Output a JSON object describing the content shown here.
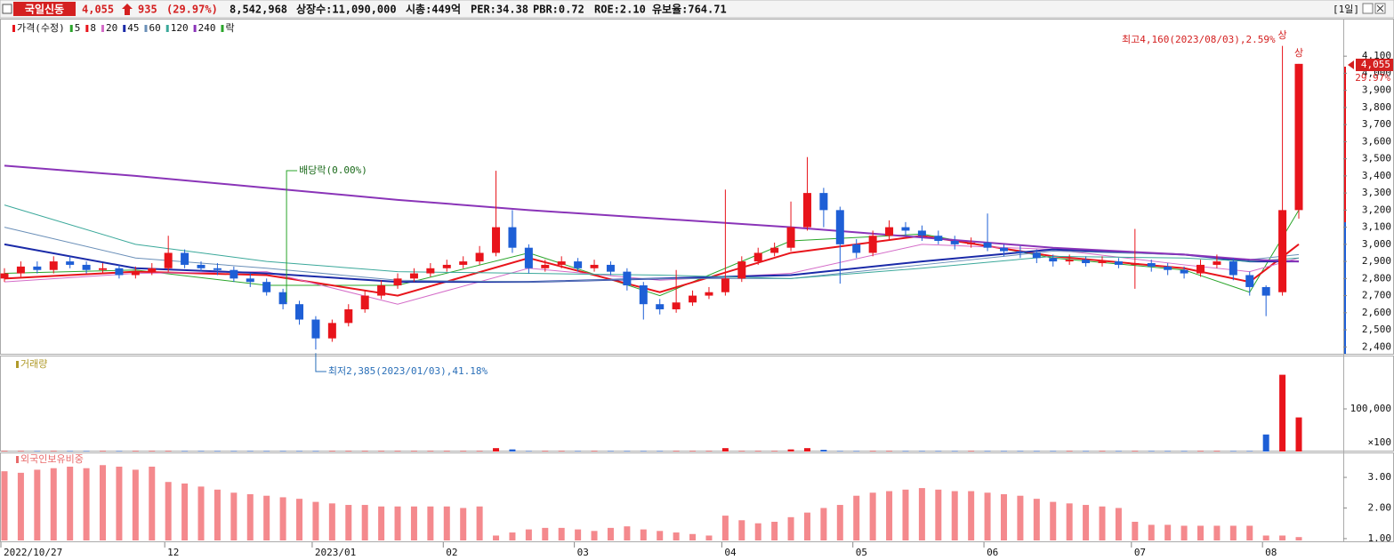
{
  "header": {
    "name": "국일신동",
    "price": "4,055",
    "change": "935",
    "change_rate": "(29.97%)",
    "volume": "8,542,968",
    "listed": "상장수:11,090,000",
    "market_cap": "시총:449억",
    "per": "PER:34.38",
    "pbr": "PBR:0.72",
    "roe": "ROE:2.10",
    "reserve": "유보율:764.71",
    "period": "[1일]"
  },
  "chart_data": [
    {
      "type": "candlestick",
      "price_name": "가격(수정)",
      "ex_div_name": "락",
      "up_color": "#e8141b",
      "down_color": "#1e5fd6",
      "open": [
        2800,
        2830,
        2870,
        2850,
        2900,
        2880,
        2850,
        2860,
        2820,
        2840,
        2860,
        2950,
        2880,
        2860,
        2850,
        2800,
        2780,
        2720,
        2650,
        2560,
        2450,
        2540,
        2620,
        2700,
        2760,
        2800,
        2830,
        2860,
        2880,
        2900,
        2950,
        3100,
        2980,
        2860,
        2880,
        2900,
        2860,
        2880,
        2840,
        2760,
        2650,
        2620,
        2660,
        2700,
        2720,
        2800,
        2900,
        2950,
        2980,
        3100,
        3300,
        3200,
        3000,
        2950,
        3050,
        3100,
        3080,
        3050,
        3020,
        3000,
        3010,
        2980,
        2960,
        2950,
        2920,
        2900,
        2910,
        2890,
        2900,
        2880,
        2890,
        2870,
        2850,
        2830,
        2880,
        2900,
        2820,
        2750,
        2720,
        3200
      ],
      "high": [
        2860,
        2900,
        2900,
        2930,
        2930,
        2900,
        2890,
        2880,
        2870,
        2890,
        3050,
        2970,
        2900,
        2890,
        2870,
        2830,
        2800,
        2740,
        2670,
        2580,
        2560,
        2650,
        2730,
        2790,
        2830,
        2860,
        2890,
        2910,
        2930,
        2990,
        3430,
        3200,
        3000,
        2910,
        2930,
        2920,
        2910,
        2900,
        2860,
        2780,
        2680,
        2850,
        2730,
        2750,
        3320,
        2930,
        2980,
        3010,
        3250,
        3510,
        3330,
        3220,
        3030,
        3080,
        3140,
        3130,
        3110,
        3080,
        3050,
        3040,
        3180,
        3000,
        2990,
        2970,
        2940,
        2940,
        2930,
        2930,
        2920,
        3090,
        2910,
        2890,
        2870,
        2910,
        2940,
        2920,
        2840,
        2760,
        4160,
        4055
      ],
      "low": [
        2780,
        2810,
        2830,
        2830,
        2860,
        2830,
        2830,
        2800,
        2800,
        2820,
        2840,
        2860,
        2840,
        2820,
        2780,
        2750,
        2700,
        2620,
        2530,
        2385,
        2430,
        2520,
        2600,
        2680,
        2740,
        2780,
        2810,
        2840,
        2860,
        2880,
        2930,
        2950,
        2830,
        2840,
        2860,
        2840,
        2840,
        2820,
        2730,
        2560,
        2590,
        2600,
        2640,
        2680,
        2700,
        2780,
        2880,
        2930,
        2960,
        3080,
        3100,
        2770,
        2920,
        2930,
        3030,
        3050,
        3020,
        3000,
        2970,
        2980,
        2960,
        2930,
        2920,
        2890,
        2870,
        2880,
        2870,
        2870,
        2860,
        2740,
        2840,
        2820,
        2800,
        2810,
        2860,
        2790,
        2700,
        2580,
        2700,
        3150
      ],
      "close": [
        2830,
        2870,
        2850,
        2900,
        2880,
        2850,
        2860,
        2820,
        2840,
        2860,
        2950,
        2880,
        2860,
        2850,
        2800,
        2780,
        2720,
        2650,
        2560,
        2450,
        2540,
        2620,
        2700,
        2760,
        2800,
        2830,
        2860,
        2880,
        2900,
        2950,
        3100,
        2980,
        2860,
        2880,
        2900,
        2860,
        2880,
        2840,
        2760,
        2650,
        2620,
        2660,
        2700,
        2720,
        2800,
        2900,
        2950,
        2980,
        3100,
        3300,
        3200,
        3000,
        2950,
        3050,
        3100,
        3080,
        3050,
        3020,
        3000,
        3010,
        2980,
        2960,
        2950,
        2920,
        2900,
        2910,
        2890,
        2900,
        2880,
        2890,
        2870,
        2850,
        2830,
        2880,
        2900,
        2820,
        2750,
        2700,
        3200,
        4055
      ],
      "moving_averages": {
        "x": [
          0,
          8,
          16,
          24,
          32,
          40,
          48,
          56,
          64,
          72,
          76,
          79
        ],
        "series": [
          {
            "name": "5",
            "color": "#2aa52a",
            "values": [
              2830,
              2850,
              2760,
              2760,
              2950,
              2700,
              3020,
              3060,
              2920,
              2850,
              2720,
              3200
            ]
          },
          {
            "name": "8",
            "color": "#e8141b",
            "values": [
              2800,
              2840,
              2820,
              2700,
              2920,
              2720,
              2950,
              3050,
              2930,
              2860,
              2780,
              3000
            ]
          },
          {
            "name": "20",
            "color": "#d46cc8",
            "values": [
              2780,
              2830,
              2840,
              2650,
              2860,
              2790,
              2830,
              3000,
              2970,
              2880,
              2840,
              2920
            ]
          },
          {
            "name": "45",
            "color": "#1a2aa8",
            "values": [
              3000,
              2860,
              2830,
              2780,
              2780,
              2800,
              2820,
              2900,
              2970,
              2940,
              2900,
              2900
            ]
          },
          {
            "name": "60",
            "color": "#6a8fb8",
            "values": [
              3100,
              2920,
              2860,
              2790,
              2780,
              2800,
              2800,
              2880,
              2960,
              2940,
              2910,
              2940
            ]
          },
          {
            "name": "120",
            "color": "#3aa89a",
            "values": [
              3230,
              3000,
              2900,
              2840,
              2830,
              2820,
              2800,
              2860,
              2930,
              2920,
              2900,
              2920
            ]
          },
          {
            "name": "240",
            "color": "#8a34b8",
            "values": [
              3460,
              3400,
              3330,
              3260,
              3200,
              3150,
              3100,
              3040,
              2980,
              2940,
              2910,
              2900
            ]
          }
        ]
      },
      "ylim": [
        2360,
        4314
      ],
      "yticks": [
        {
          "value": 2400,
          "label": "2,400"
        },
        {
          "value": 2500,
          "label": "2,500"
        },
        {
          "value": 2600,
          "label": "2,600"
        },
        {
          "value": 2700,
          "label": "2,700"
        },
        {
          "value": 2800,
          "label": "2,800"
        },
        {
          "value": 2900,
          "label": "2,900"
        },
        {
          "value": 3000,
          "label": "3,000"
        },
        {
          "value": 3100,
          "label": "3,100"
        },
        {
          "value": 3200,
          "label": "3,200"
        },
        {
          "value": 3300,
          "label": "3,300"
        },
        {
          "value": 3400,
          "label": "3,400"
        },
        {
          "value": 3500,
          "label": "3,500"
        },
        {
          "value": 3600,
          "label": "3,600"
        },
        {
          "value": 3700,
          "label": "3,700"
        },
        {
          "value": 3800,
          "label": "3,800"
        },
        {
          "value": 3900,
          "label": "3,900"
        },
        {
          "value": 4000,
          "label": "4,000"
        },
        {
          "value": 4100,
          "label": "4,100"
        }
      ],
      "max_label": "최고4,160(2023/08/03),2.59%",
      "min_label": "최저2,385(2023/01/03),41.18%",
      "ex_div_label": "배당락(0.00%)",
      "limit_up_marks": [
        "상",
        "상"
      ],
      "last_price_label": "4,055",
      "last_change_label": "29.97%"
    },
    {
      "type": "bar",
      "title": "거래량",
      "title_color": "#b09a2a",
      "unit_label": "×100",
      "values": [
        1000,
        1000,
        1000,
        1000,
        1000,
        1000,
        1000,
        1000,
        1000,
        1000,
        1000,
        1000,
        1000,
        1000,
        1000,
        1000,
        1000,
        1000,
        1000,
        1000,
        1000,
        1000,
        1000,
        1000,
        1000,
        1000,
        1000,
        1000,
        1000,
        1000,
        8000,
        5000,
        1000,
        1000,
        1000,
        1000,
        1000,
        1000,
        1000,
        1000,
        1000,
        1000,
        1000,
        1000,
        8000,
        1000,
        1000,
        1000,
        5000,
        8000,
        4000,
        1000,
        1000,
        1000,
        1000,
        1000,
        1000,
        1000,
        1000,
        1000,
        1000,
        1000,
        1000,
        1000,
        1000,
        1000,
        1000,
        1000,
        1000,
        1000,
        1000,
        1000,
        1000,
        1000,
        1000,
        1000,
        1000,
        40000,
        180000,
        80000
      ],
      "ylim": [
        0,
        200000
      ],
      "yticks": [
        {
          "value": 100000,
          "label": "100,000"
        }
      ]
    },
    {
      "type": "bar",
      "title": "외국인보유비중",
      "title_color": "#e86a6a",
      "color": "#f4898d",
      "values": [
        3.2,
        3.15,
        3.25,
        3.3,
        3.35,
        3.3,
        3.4,
        3.35,
        3.25,
        3.35,
        2.85,
        2.8,
        2.7,
        2.6,
        2.5,
        2.45,
        2.4,
        2.35,
        2.3,
        2.2,
        2.15,
        2.1,
        2.1,
        2.05,
        2.05,
        2.05,
        2.05,
        2.05,
        2.0,
        2.05,
        1.1,
        1.2,
        1.3,
        1.35,
        1.35,
        1.3,
        1.25,
        1.35,
        1.4,
        1.3,
        1.25,
        1.2,
        1.15,
        1.1,
        1.75,
        1.6,
        1.5,
        1.55,
        1.7,
        1.85,
        2.0,
        2.1,
        2.4,
        2.5,
        2.55,
        2.6,
        2.65,
        2.6,
        2.55,
        2.55,
        2.5,
        2.45,
        2.4,
        2.3,
        2.2,
        2.15,
        2.1,
        2.05,
        2.0,
        1.55,
        1.45,
        1.45,
        1.42,
        1.42,
        1.42,
        1.42,
        1.42,
        1.1,
        1.1,
        1.05
      ],
      "categories": [
        "2022/10/27",
        null,
        null,
        null,
        null,
        null,
        null,
        null,
        null,
        null,
        "12",
        null,
        null,
        null,
        null,
        null,
        null,
        null,
        null,
        "2023/01",
        null,
        null,
        null,
        null,
        null,
        null,
        null,
        "02",
        null,
        null,
        null,
        null,
        null,
        null,
        null,
        "03",
        null,
        null,
        null,
        null,
        null,
        null,
        null,
        null,
        "04",
        null,
        null,
        null,
        null,
        null,
        null,
        null,
        "05",
        null,
        null,
        null,
        null,
        null,
        null,
        null,
        "06",
        null,
        null,
        null,
        null,
        null,
        null,
        null,
        null,
        "07",
        null,
        null,
        null,
        null,
        null,
        null,
        null,
        "08",
        null,
        null
      ],
      "ylim": [
        0.94,
        3.64
      ],
      "yticks": [
        {
          "value": 1,
          "label": "1.00"
        },
        {
          "value": 2,
          "label": "2.00"
        },
        {
          "value": 3,
          "label": "3.00"
        }
      ]
    }
  ]
}
